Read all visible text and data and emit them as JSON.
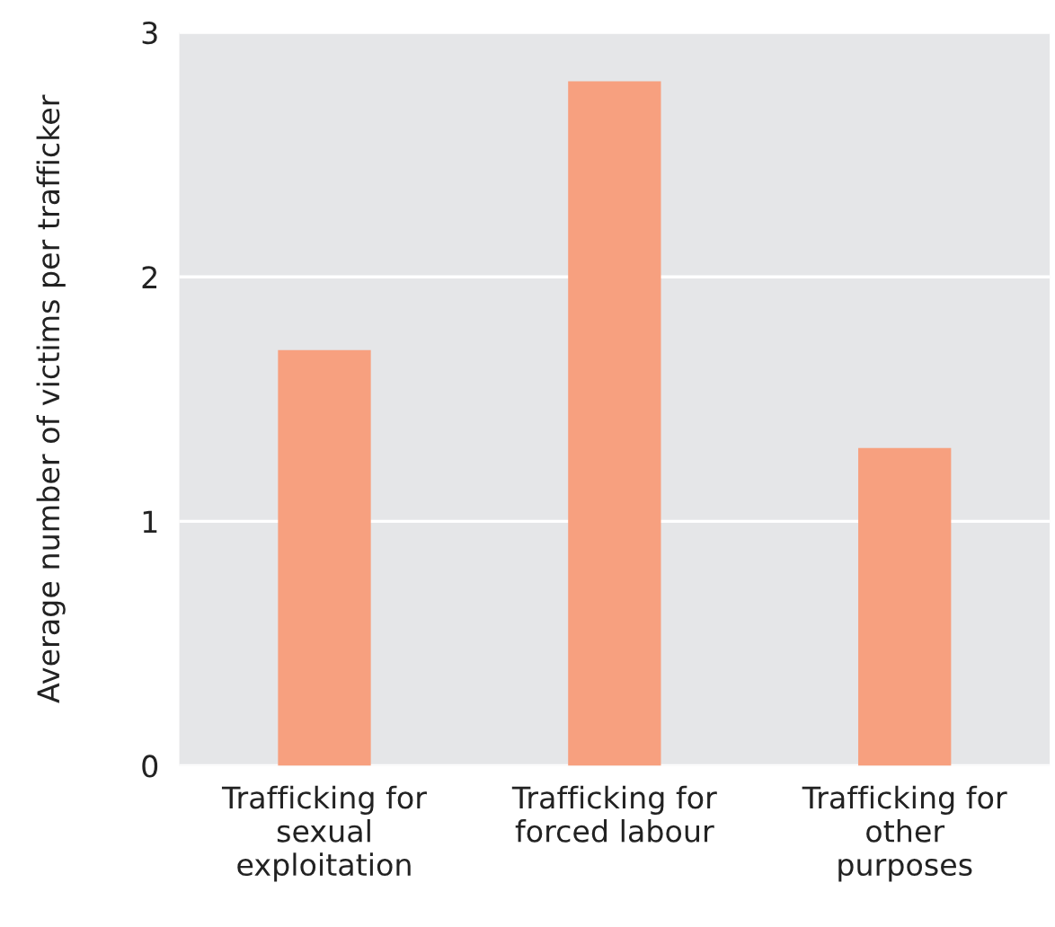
{
  "chart_data": {
    "type": "bar",
    "ylabel": "Average number of victims per trafficker",
    "categories": [
      "Trafficking for\nsexual\nexploitation",
      "Trafficking for\nforced labour",
      "Trafficking for\nother\npurposes"
    ],
    "values": [
      1.7,
      2.8,
      1.3
    ],
    "color": "#f7a07f",
    "ylim": [
      0,
      3
    ],
    "yticks": [
      0,
      1,
      2,
      3
    ],
    "grid": "y"
  }
}
